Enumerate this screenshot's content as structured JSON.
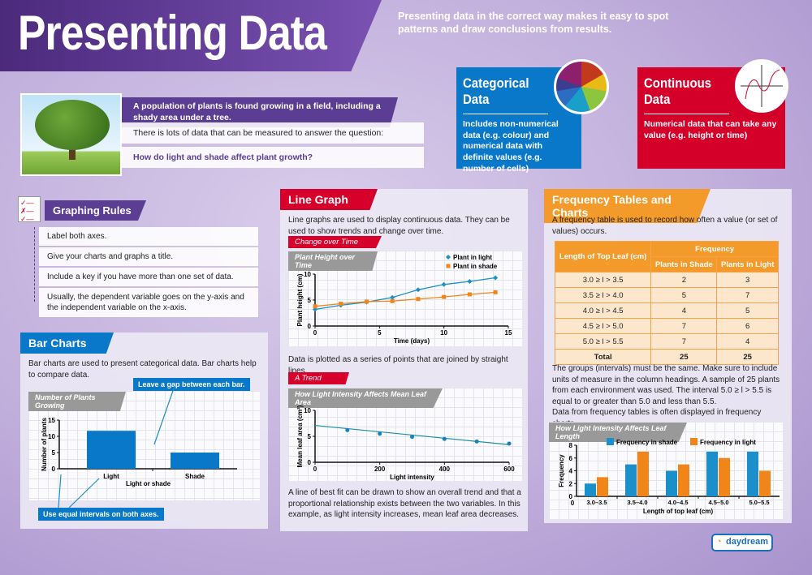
{
  "header": {
    "title": "Presenting Data",
    "intro": "Presenting data in the correct way makes it easy to spot patterns and draw conclusions from results."
  },
  "categorical": {
    "title": "Categorical Data",
    "text": "Includes non-numerical data (e.g. colour) and numerical data with definite values (e.g. number of cells)",
    "color": "#0a78c8",
    "icon": "pie-chart-icon"
  },
  "continuous": {
    "title": "Continuous Data",
    "text": "Numerical data that can take any value (e.g. height or time)",
    "color": "#d5002a",
    "icon": "line-graph-icon"
  },
  "intro_panel": {
    "image": "tree-image",
    "banner": "A population of plants is found growing in a field, including a shady area under a tree.",
    "line2": "There is lots of data that can be measured to answer the question:",
    "question": "How do light and shade affect plant growth?"
  },
  "graphing_rules": {
    "title": "Graphing Rules",
    "icon": "checklist-icon",
    "items": [
      "Label both axes.",
      "Give your charts and graphs a title.",
      "Include a key if you have more than one set of data.",
      "Usually, the dependent variable goes on the y-axis and the independent variable on the x-axis."
    ]
  },
  "bar_charts": {
    "title": "Bar Charts",
    "text": "Bar charts are used to present categorical data. Bar charts help to compare data.",
    "callout_gap": "Leave a gap between each bar.",
    "callout_intervals": "Use equal intervals on both axes."
  },
  "line_graph": {
    "title": "Line Graph",
    "text": "Line graphs are used to display continuous data. They can be used to show trends and change over time.",
    "sub1": "Change over Time",
    "mid_text": "Data is plotted as a series of points that are joined by straight lines.",
    "sub2": "A Trend",
    "bottom_text": "A line of best fit can be drawn to show an overall trend and that a proportional relationship exists between the two variables. In this example, as light intensity increases, mean leaf area decreases."
  },
  "frequency": {
    "title": "Frequency Tables and Charts",
    "text": "A frequency table is used to record how often a value (or set of values) occurs.",
    "table": {
      "col1": "Length of Top Leaf (cm)",
      "group": "Frequency",
      "col2": "Plants in Shade",
      "col3": "Plants in Light",
      "rows": [
        [
          "3.0 ≥ l > 3.5",
          "2",
          "3"
        ],
        [
          "3.5 ≥ l > 4.0",
          "5",
          "7"
        ],
        [
          "4.0 ≥ l > 4.5",
          "4",
          "5"
        ],
        [
          "4.5 ≥ l > 5.0",
          "7",
          "6"
        ],
        [
          "5.0 ≥ l > 5.5",
          "7",
          "4"
        ],
        [
          "Total",
          "25",
          "25"
        ]
      ]
    },
    "text2": "The groups (intervals) must be the same. Make sure to include units of measure in the column headings. A sample of 25 plants from each environment was used. The interval 5.0 ≥ l > 5.5 is equal to or greater than 5.0 and less than 5.5.",
    "text3": "Data from frequency tables is often displayed in frequency charts."
  },
  "logo": {
    "text": "daydream education"
  },
  "colors": {
    "purple": "#5b3d93",
    "blue": "#0a78c8",
    "red": "#d7002b",
    "orange": "#f39a2b",
    "light_series": "#1a8fc9",
    "shade_series": "#f0851a"
  },
  "chart_data": [
    {
      "id": "bar",
      "type": "bar",
      "title": "Number of Plants Growing",
      "xlabel": "Light or shade",
      "ylabel": "Number of plants",
      "categories": [
        "Light",
        "Shade"
      ],
      "values": [
        11.7,
        5
      ],
      "ylim": [
        0,
        15
      ],
      "yticks": [
        0,
        5,
        10,
        15
      ],
      "grid": true
    },
    {
      "id": "line",
      "type": "line",
      "title": "Plant Height over Time",
      "xlabel": "Time (days)",
      "ylabel": "Plant height (cm)",
      "xlim": [
        0,
        15
      ],
      "ylim": [
        0,
        10
      ],
      "xticks": [
        0,
        5,
        10,
        15
      ],
      "yticks": [
        0,
        5,
        10
      ],
      "legend": "top-right",
      "grid": true,
      "series": [
        {
          "name": "Plant in light",
          "color": "#1a8fc9",
          "marker": "diamond",
          "x": [
            0,
            2,
            4,
            6,
            8,
            10,
            12,
            14
          ],
          "y": [
            3.2,
            4,
            4.6,
            5.5,
            7,
            8,
            8.6,
            9.3
          ]
        },
        {
          "name": "Plant in shade",
          "color": "#f0851a",
          "marker": "square",
          "x": [
            0,
            2,
            4,
            6,
            8,
            10,
            12,
            14
          ],
          "y": [
            3.8,
            4.3,
            4.7,
            4.8,
            5.2,
            5.6,
            6.1,
            6.5
          ]
        }
      ]
    },
    {
      "id": "trend",
      "type": "scatter",
      "title": "How Light Intensity Affects Mean Leaf Area",
      "xlabel": "Light intensity",
      "ylabel": "Mean leaf area (cm²)",
      "xlim": [
        0,
        600
      ],
      "ylim": [
        0,
        10
      ],
      "xticks": [
        0,
        200,
        400,
        600
      ],
      "yticks": [
        0,
        5,
        10
      ],
      "grid": true,
      "points": {
        "x": [
          100,
          200,
          300,
          400,
          500,
          600
        ],
        "y": [
          6.2,
          5.5,
          4.9,
          4.5,
          4.0,
          3.6
        ]
      },
      "best_fit": {
        "x": [
          0,
          600
        ],
        "y": [
          7.1,
          3.4
        ]
      }
    },
    {
      "id": "freq",
      "type": "bar",
      "title": "How Light Intensity Affects Leaf Length",
      "xlabel": "Length of top leaf (cm)",
      "ylabel": "Frequency",
      "categories": [
        "3.0–3.5",
        "3.5–4.0",
        "4.0–4.5",
        "4.5–5.0",
        "5.0–5.5"
      ],
      "ylim": [
        0,
        8
      ],
      "yticks": [
        0,
        2,
        4,
        6,
        8
      ],
      "legend": "top",
      "grid": true,
      "series": [
        {
          "name": "Frequency in shade",
          "color": "#1a8fc9",
          "values": [
            2,
            5,
            4,
            7,
            7
          ]
        },
        {
          "name": "Frequency in light",
          "color": "#f0851a",
          "values": [
            3,
            7,
            5,
            6,
            4
          ]
        }
      ]
    }
  ]
}
